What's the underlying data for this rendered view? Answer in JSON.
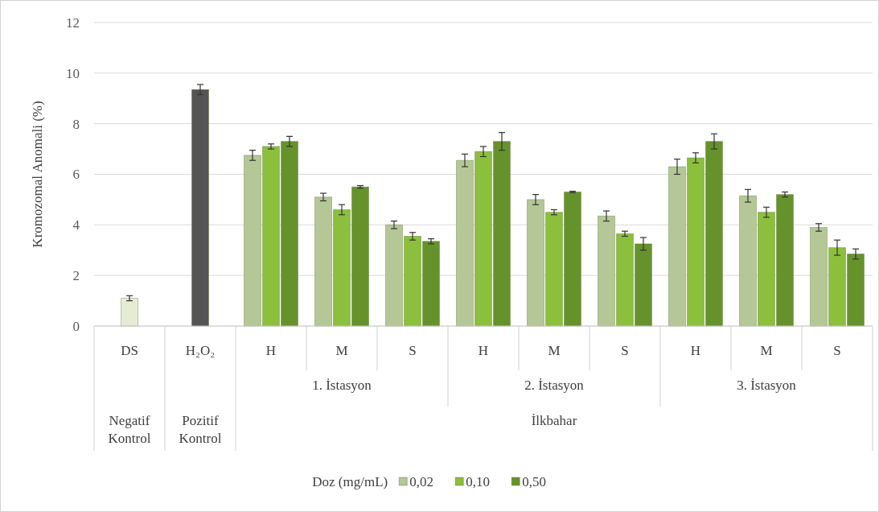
{
  "chart_data": {
    "type": "bar",
    "ylabel": "Kromozomal Anomali (%)",
    "legend_title": "Doz (mg/mL)",
    "legend": "bottom",
    "grid": "y",
    "categories": [
      "DS",
      "H₂O₂",
      "H",
      "M",
      "S",
      "H",
      "M",
      "S",
      "H",
      "M",
      "S"
    ],
    "annotations": [
      "1. İstasyon",
      "2. İstasyon",
      "3. İstasyon",
      "Negatif Kontrol",
      "Pozitif Kontrol",
      "İlkbahar"
    ],
    "ylim": [
      0,
      12
    ],
    "yticks": [
      0,
      2,
      4,
      6,
      8,
      10,
      12
    ],
    "series": [
      {
        "name": "0,02",
        "color": "#b5c796",
        "colors": [
          "#e6ecd4",
          null,
          "#b5c796",
          "#b5c796",
          "#b5c796",
          "#b5c796",
          "#b5c796",
          "#b5c796",
          "#b5c796",
          "#b5c796",
          "#b5c796"
        ],
        "values": [
          1.1,
          null,
          6.75,
          5.1,
          4.0,
          6.55,
          5.0,
          4.35,
          6.3,
          5.15,
          3.9
        ],
        "errors": [
          0.1,
          null,
          0.2,
          0.15,
          0.15,
          0.25,
          0.2,
          0.2,
          0.3,
          0.25,
          0.15
        ]
      },
      {
        "name": "0,10",
        "color": "#8cbf3c",
        "values": [
          null,
          null,
          7.1,
          4.6,
          3.55,
          6.9,
          4.5,
          3.65,
          6.65,
          4.5,
          3.1
        ],
        "errors": [
          null,
          null,
          0.1,
          0.2,
          0.15,
          0.2,
          0.1,
          0.1,
          0.2,
          0.2,
          0.3
        ]
      },
      {
        "name": "0,50",
        "color": "#66922c",
        "colors": [
          null,
          "#555555",
          "#66922c",
          "#66922c",
          "#66922c",
          "#66922c",
          "#66922c",
          "#66922c",
          "#66922c",
          "#66922c",
          "#66922c"
        ],
        "values": [
          null,
          9.35,
          7.3,
          5.5,
          3.35,
          7.3,
          5.3,
          3.25,
          7.3,
          5.2,
          2.85
        ],
        "errors": [
          null,
          0.2,
          0.2,
          0.05,
          0.1,
          0.35,
          0.03,
          0.25,
          0.3,
          0.1,
          0.2
        ]
      }
    ]
  }
}
